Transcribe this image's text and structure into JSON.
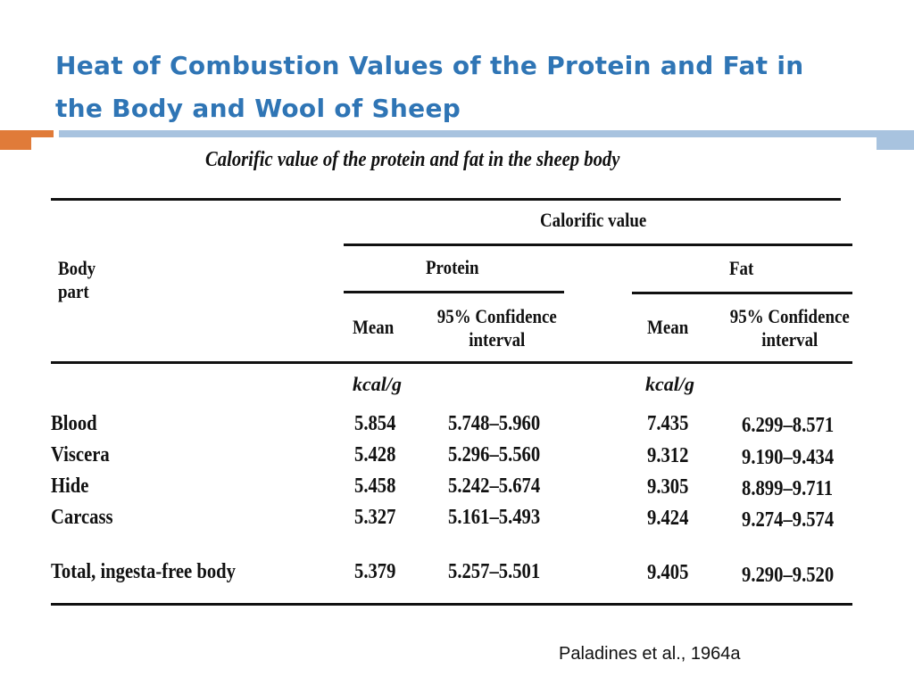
{
  "slide": {
    "title": "Heat of Combustion Values of the Protein and Fat in the Body and Wool of Sheep",
    "citation": "Paladines et al., 1964a"
  },
  "colors": {
    "title": "#2f75b5",
    "accent_orange": "#e07b39",
    "accent_blue": "#a8c3df"
  },
  "table": {
    "caption": "Calorific value of the protein and fat in the sheep body",
    "header": {
      "body_part": "Body part",
      "group": "Calorific value",
      "protein": "Protein",
      "fat": "Fat",
      "mean": "Mean",
      "ci": "95% Confidence interval",
      "unit": "kcal/g"
    },
    "rows": [
      {
        "part": "Blood",
        "protein_mean": "5.854",
        "protein_ci": "5.748–5.960",
        "fat_mean": "7.435",
        "fat_ci": "6.299–8.571"
      },
      {
        "part": "Viscera",
        "protein_mean": "5.428",
        "protein_ci": "5.296–5.560",
        "fat_mean": "9.312",
        "fat_ci": "9.190–9.434"
      },
      {
        "part": "Hide",
        "protein_mean": "5.458",
        "protein_ci": "5.242–5.674",
        "fat_mean": "9.305",
        "fat_ci": "8.899–9.711"
      },
      {
        "part": "Carcass",
        "protein_mean": "5.327",
        "protein_ci": "5.161–5.493",
        "fat_mean": "9.424",
        "fat_ci": "9.274–9.574"
      },
      {
        "part": "Total, ingesta-free body",
        "protein_mean": "5.379",
        "protein_ci": "5.257–5.501",
        "fat_mean": "9.405",
        "fat_ci": "9.290–9.520"
      }
    ]
  }
}
